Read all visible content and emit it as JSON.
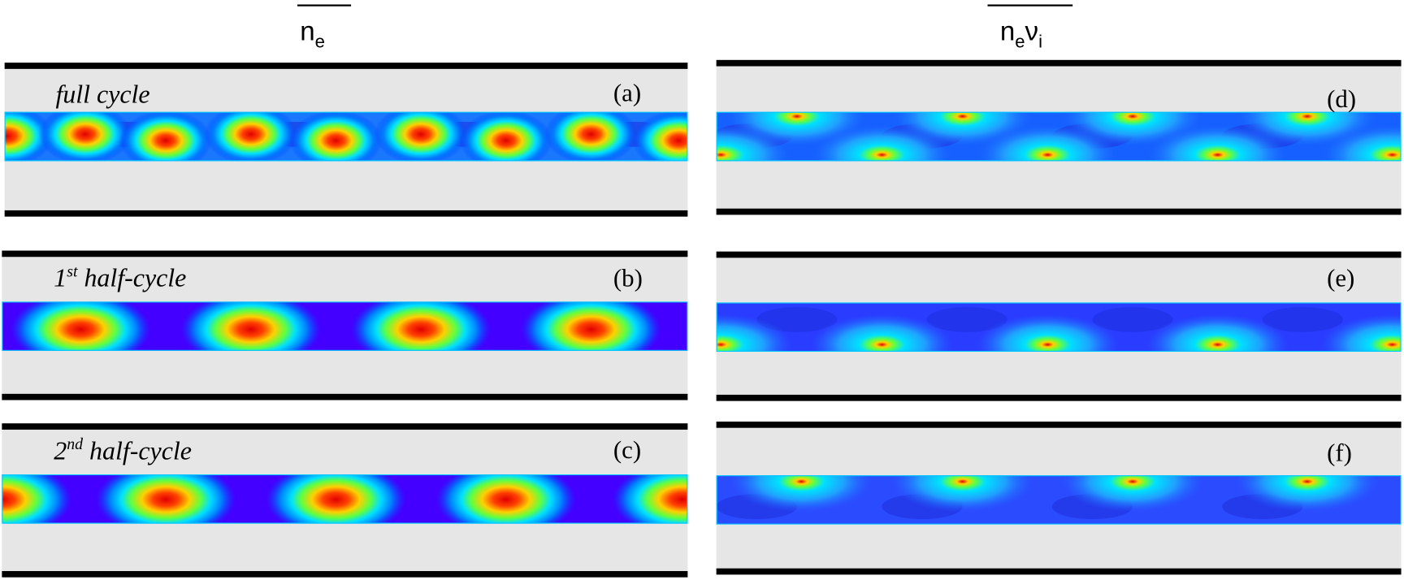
{
  "headers": {
    "left": {
      "base": "n",
      "sub": "e"
    },
    "right": {
      "base1": "n",
      "sub1": "e",
      "base2": "ν",
      "sub2": "i"
    }
  },
  "panels": [
    {
      "label": "(a)",
      "caption": {
        "text": "full cycle"
      }
    },
    {
      "label": "(b)",
      "caption": {
        "pre": "1",
        "sup": "st",
        "post": " half-cycle"
      }
    },
    {
      "label": "(c)",
      "caption": {
        "pre": "2",
        "sup": "nd",
        "post": " half-cycle"
      }
    },
    {
      "label": "(d)"
    },
    {
      "label": "(e)"
    },
    {
      "label": "(f)"
    }
  ]
}
